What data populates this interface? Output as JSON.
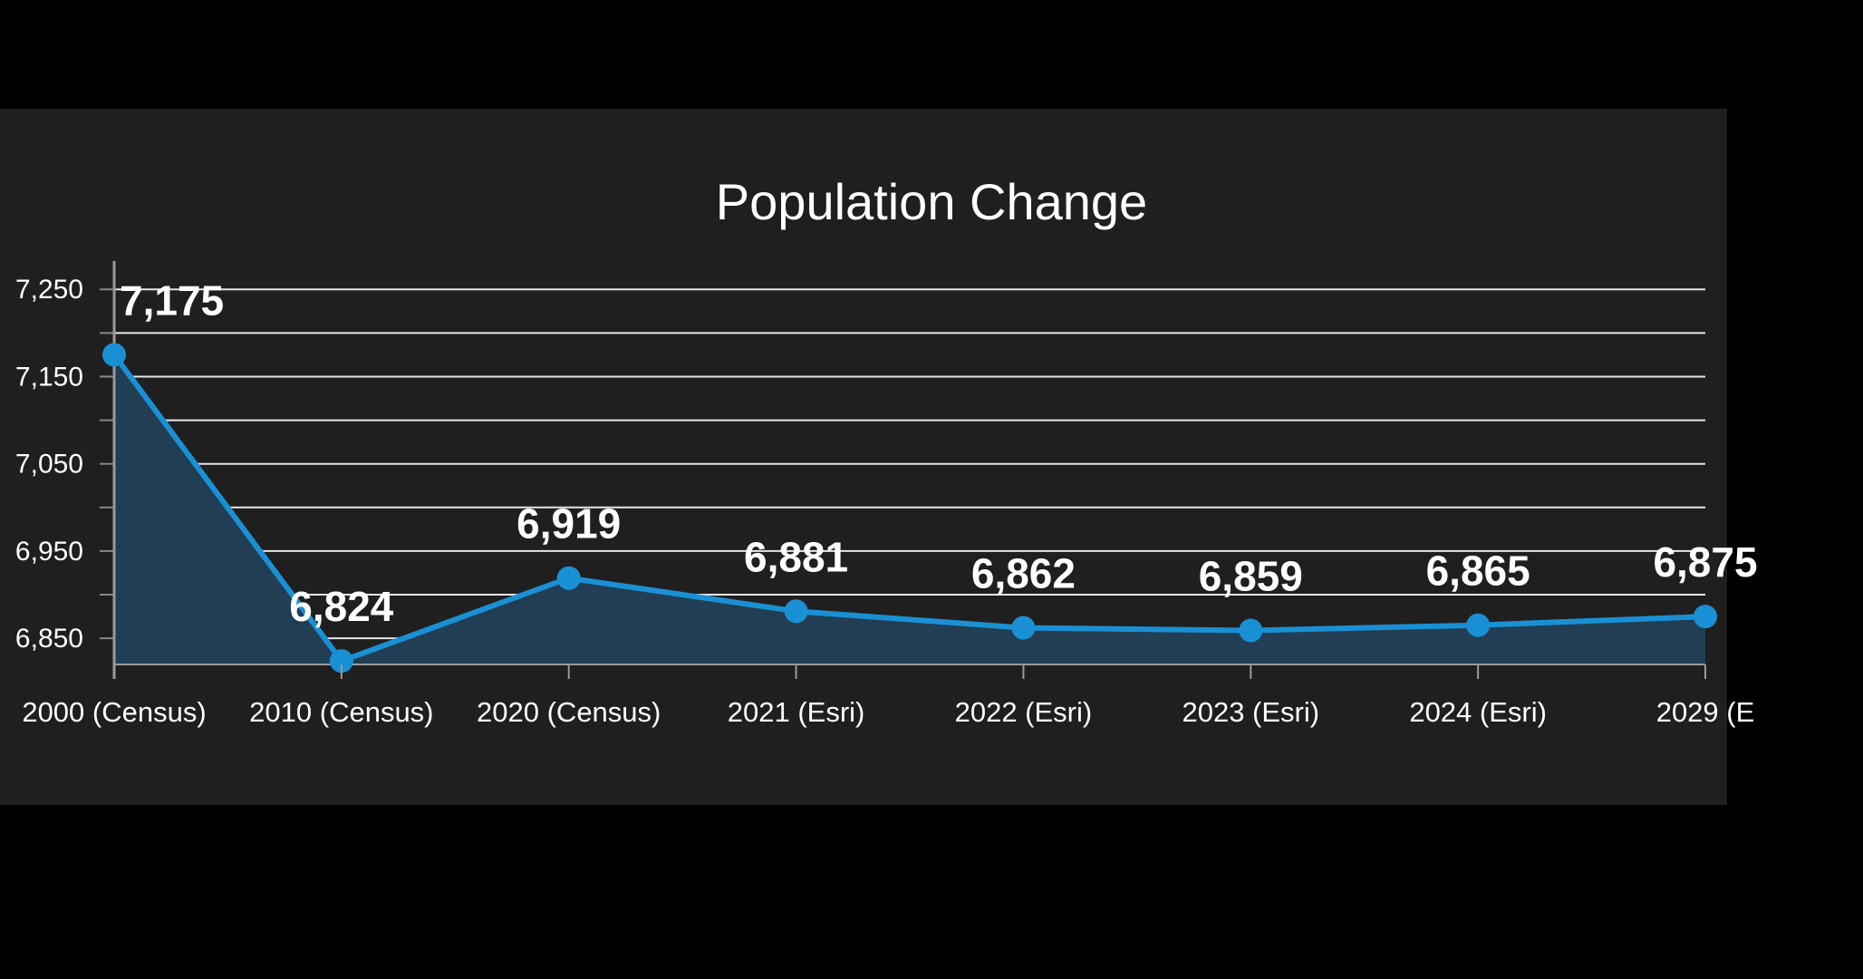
{
  "chart_data": {
    "type": "area",
    "title": "Population Change",
    "xlabel": "",
    "ylabel": "",
    "categories": [
      "2000 (Census)",
      "2010 (Census)",
      "2020 (Census)",
      "2021 (Esri)",
      "2022 (Esri)",
      "2023 (Esri)",
      "2024 (Esri)",
      "2029 (E"
    ],
    "values": [
      7175,
      6824,
      6919,
      6881,
      6862,
      6859,
      6865,
      6875
    ],
    "data_labels": [
      "7,175",
      "6,824",
      "6,919",
      "6,881",
      "6,862",
      "6,859",
      "6,865",
      "6,875"
    ],
    "ylim": [
      6820,
      7270
    ],
    "yticks": [
      6850,
      6950,
      7050,
      7150,
      7250
    ],
    "ytick_labels": [
      "6,850",
      "6,950",
      "7,050",
      "7,150",
      "7,250"
    ],
    "grid_step": 50,
    "grid": true,
    "legend": "none",
    "colors": {
      "line": "#1a90d4",
      "area": "#213e54",
      "grid": "#e6e6e6",
      "background": "#1f1f1f",
      "page": "#000000"
    }
  }
}
